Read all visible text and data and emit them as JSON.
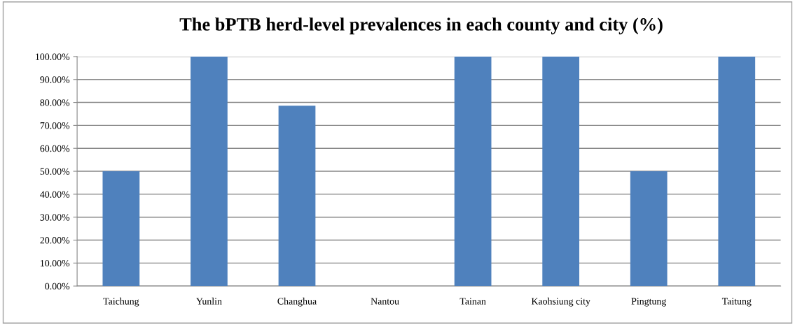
{
  "chart_data": {
    "type": "bar",
    "title": "The bPTB herd-level prevalences in each county and city (%)",
    "categories": [
      "Taichung",
      "Yunlin",
      "Changhua",
      "Nantou",
      "Tainan",
      "Kaohsiung city",
      "Pingtung",
      "Taitung"
    ],
    "values": [
      50,
      100,
      78.6,
      0,
      100,
      100,
      50,
      100
    ],
    "color": "#4f81bd",
    "ylim": [
      0,
      100
    ],
    "yticks": [
      {
        "value": 0,
        "label": "0.00%"
      },
      {
        "value": 10,
        "label": "10.00%"
      },
      {
        "value": 20,
        "label": "20.00%"
      },
      {
        "value": 30,
        "label": "30.00%"
      },
      {
        "value": 40,
        "label": "40.00%"
      },
      {
        "value": 50,
        "label": "50.00%"
      },
      {
        "value": 60,
        "label": "60.00%"
      },
      {
        "value": 70,
        "label": "70.00%"
      },
      {
        "value": 80,
        "label": "80.00%"
      },
      {
        "value": 90,
        "label": "90.00%"
      },
      {
        "value": 100,
        "label": "100.00%"
      }
    ],
    "grid": "y"
  }
}
